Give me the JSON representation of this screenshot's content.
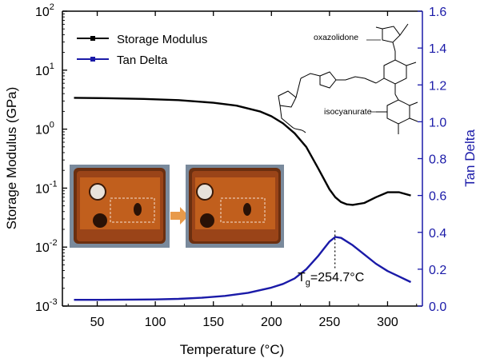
{
  "chart_data": {
    "type": "line",
    "xlabel": "Temperature (°C)",
    "ylabel_left": "Storage Modulus (GPa)",
    "ylabel_right": "Tan Delta",
    "xlim": [
      20,
      330
    ],
    "ylim_left": [
      0.001,
      100
    ],
    "ylim_right": [
      0,
      1.6
    ],
    "y_left_scale": "log",
    "x_ticks": [
      "50",
      "100",
      "150",
      "200",
      "250",
      "300"
    ],
    "x_tick_values": [
      50,
      100,
      150,
      200,
      250,
      300
    ],
    "y_left_ticks": [
      {
        "base": "10",
        "exp": "-3",
        "value": 0.001
      },
      {
        "base": "10",
        "exp": "-2",
        "value": 0.01
      },
      {
        "base": "10",
        "exp": "-1",
        "value": 0.1
      },
      {
        "base": "10",
        "exp": "0",
        "value": 1
      },
      {
        "base": "10",
        "exp": "1",
        "value": 10
      },
      {
        "base": "10",
        "exp": "2",
        "value": 100
      }
    ],
    "y_right_ticks": [
      "0.0",
      "0.2",
      "0.4",
      "0.6",
      "0.8",
      "1.0",
      "1.2",
      "1.4",
      "1.6"
    ],
    "y_right_tick_values": [
      0,
      0.2,
      0.4,
      0.6,
      0.8,
      1.0,
      1.2,
      1.4,
      1.6
    ],
    "legend_position": "top-left",
    "series": [
      {
        "name": "Storage Modulus",
        "axis": "left",
        "color": "#000000",
        "x": [
          30,
          60,
          90,
          120,
          150,
          170,
          190,
          200,
          210,
          220,
          230,
          240,
          250,
          255,
          260,
          265,
          270,
          280,
          290,
          300,
          310,
          320
        ],
        "y": [
          3.4,
          3.35,
          3.25,
          3.1,
          2.8,
          2.5,
          2.0,
          1.65,
          1.25,
          0.85,
          0.5,
          0.22,
          0.095,
          0.07,
          0.058,
          0.053,
          0.052,
          0.056,
          0.07,
          0.085,
          0.085,
          0.075
        ]
      },
      {
        "name": "Tan Delta",
        "axis": "right",
        "color": "#1a1aa8",
        "x": [
          30,
          50,
          80,
          100,
          120,
          140,
          160,
          180,
          200,
          210,
          220,
          230,
          240,
          245,
          250,
          255,
          260,
          270,
          280,
          290,
          300,
          310,
          320
        ],
        "y": [
          0.034,
          0.034,
          0.035,
          0.036,
          0.039,
          0.045,
          0.055,
          0.072,
          0.1,
          0.12,
          0.15,
          0.2,
          0.27,
          0.31,
          0.35,
          0.375,
          0.37,
          0.33,
          0.28,
          0.23,
          0.19,
          0.16,
          0.13
        ]
      }
    ],
    "annotation": {
      "prefix": "T",
      "sub": "g",
      "suffix": "=254.7°C",
      "x": 254.7,
      "y": 0.375
    },
    "chem_labels": {
      "oxazolidone": "oxazolidone",
      "isocyanurate": "isocyanurate"
    },
    "inset_images": 2
  }
}
